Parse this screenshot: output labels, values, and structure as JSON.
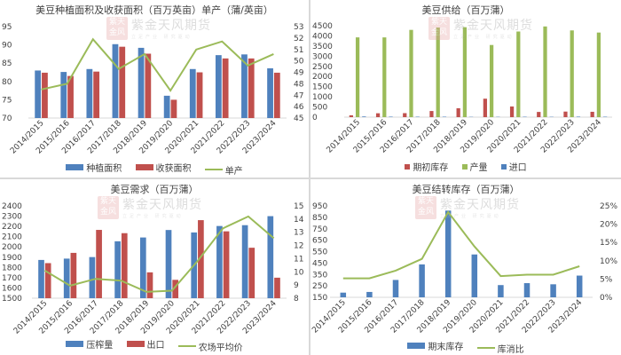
{
  "watermark": {
    "seal": "紫天金风",
    "brand": "紫金天风期货",
    "tagline": "立足产业 研究驱动"
  },
  "colors": {
    "blue": "#4f81bd",
    "red": "#c0504d",
    "green": "#9bbb59",
    "axis": "#d9d9d9",
    "text": "#404040"
  },
  "chart_data": [
    {
      "type": "bar",
      "title": "美豆种植面积及收获面积（百万英亩）单产（蒲/英亩）",
      "categories": [
        "2014/2015",
        "2015/2016",
        "2016/2017",
        "2017/2018",
        "2018/2019",
        "2019/2020",
        "2020/2021",
        "2021/2022",
        "2022/2023",
        "2023/2024"
      ],
      "series": [
        {
          "name": "种植面积",
          "type": "bar",
          "axis": "left",
          "color": "#4f81bd",
          "values": [
            83.0,
            82.6,
            83.4,
            90.2,
            89.2,
            76.1,
            83.4,
            87.2,
            87.4,
            83.6
          ]
        },
        {
          "name": "收获面积",
          "type": "bar",
          "axis": "left",
          "color": "#c0504d",
          "values": [
            82.4,
            81.5,
            82.7,
            89.5,
            87.6,
            75.0,
            82.5,
            86.3,
            86.3,
            82.4
          ]
        },
        {
          "name": "单产",
          "type": "line",
          "axis": "right",
          "color": "#9bbb59",
          "values": [
            47.5,
            48.0,
            51.9,
            49.3,
            50.6,
            47.4,
            51.0,
            51.7,
            49.6,
            50.6
          ]
        }
      ],
      "ylim": [
        70,
        95
      ],
      "yticks": [
        70,
        75,
        80,
        85,
        90,
        95
      ],
      "y2lim": [
        45,
        53
      ],
      "y2ticks": [
        45,
        46,
        47,
        48,
        49,
        50,
        51,
        52,
        53
      ],
      "xlabel": "",
      "ylabel": "",
      "legend_position": "bottom",
      "grid": false
    },
    {
      "type": "bar",
      "title": "美豆供给（百万蒲）",
      "categories": [
        "2014/2015",
        "2015/2016",
        "2016/2017",
        "2017/2018",
        "2018/2019",
        "2019/2020",
        "2020/2021",
        "2021/2022",
        "2022/2023",
        "2023/2024"
      ],
      "series": [
        {
          "name": "期初库存",
          "type": "bar",
          "axis": "left",
          "color": "#c0504d",
          "values": [
            92,
            191,
            197,
            302,
            438,
            909,
            525,
            257,
            274,
            264
          ]
        },
        {
          "name": "产量",
          "type": "bar",
          "axis": "left",
          "color": "#9bbb59",
          "values": [
            3927,
            3926,
            4296,
            4412,
            4428,
            3552,
            4216,
            4465,
            4270,
            4165
          ]
        },
        {
          "name": "进口",
          "type": "bar",
          "axis": "left",
          "color": "#4f81bd",
          "values": [
            33,
            24,
            22,
            22,
            14,
            15,
            20,
            16,
            25,
            21
          ]
        }
      ],
      "ylim": [
        0,
        4500
      ],
      "yticks": [
        0,
        500,
        1000,
        1500,
        2000,
        2500,
        3000,
        3500,
        4000,
        4500
      ],
      "xlabel": "",
      "ylabel": "",
      "legend_position": "bottom",
      "grid": false
    },
    {
      "type": "bar",
      "title": "美豆需求（百万蒲）",
      "categories": [
        "2014/2015",
        "2015/2016",
        "2016/2017",
        "2017/2018",
        "2018/2019",
        "2019/2020",
        "2020/2021",
        "2021/2022",
        "2022/2023",
        "2023/2024"
      ],
      "series": [
        {
          "name": "压榨量",
          "type": "bar",
          "axis": "left",
          "color": "#4f81bd",
          "values": [
            1873,
            1886,
            1901,
            2055,
            2092,
            2165,
            2141,
            2204,
            2212,
            2300
          ]
        },
        {
          "name": "出口",
          "type": "bar",
          "axis": "left",
          "color": "#c0504d",
          "values": [
            1842,
            1942,
            2166,
            2134,
            1752,
            1679,
            2261,
            2152,
            1992,
            1700
          ]
        },
        {
          "name": "农场平均价",
          "type": "line",
          "axis": "right",
          "color": "#9bbb59",
          "values": [
            10.1,
            8.95,
            9.47,
            9.33,
            8.48,
            8.57,
            10.8,
            13.3,
            14.2,
            12.55
          ]
        }
      ],
      "ylim": [
        1500,
        2400
      ],
      "yticks": [
        1500,
        1600,
        1700,
        1800,
        1900,
        2000,
        2100,
        2200,
        2300,
        2400
      ],
      "y2lim": [
        8,
        15
      ],
      "y2ticks": [
        8,
        9,
        10,
        11,
        12,
        13,
        14,
        15
      ],
      "xlabel": "",
      "ylabel": "",
      "legend_position": "bottom",
      "grid": false
    },
    {
      "type": "bar",
      "title": "美豆结转库存（百万蒲）",
      "categories": [
        "2014/2015",
        "2015/2016",
        "2016/2017",
        "2017/2018",
        "2018/2019",
        "2019/2020",
        "2020/2021",
        "2021/2022",
        "2022/2023",
        "2023/2024"
      ],
      "series": [
        {
          "name": "期末库存",
          "type": "bar",
          "axis": "left",
          "color": "#4f81bd",
          "values": [
            191,
            197,
            302,
            438,
            909,
            525,
            257,
            274,
            264,
            340
          ]
        },
        {
          "name": "库消比",
          "type": "line",
          "axis": "right",
          "color": "#9bbb59",
          "values": [
            5.2,
            5.2,
            7.3,
            10.5,
            23.3,
            13.9,
            5.8,
            6.2,
            6.2,
            8.5
          ]
        }
      ],
      "ylim": [
        150,
        950
      ],
      "yticks": [
        150,
        250,
        350,
        450,
        550,
        650,
        750,
        850,
        950
      ],
      "y2lim": [
        0,
        25
      ],
      "y2ticks": [
        "0%",
        "5%",
        "10%",
        "15%",
        "20%",
        "25%"
      ],
      "xlabel": "",
      "ylabel": "",
      "legend_position": "bottom",
      "grid": false
    }
  ]
}
